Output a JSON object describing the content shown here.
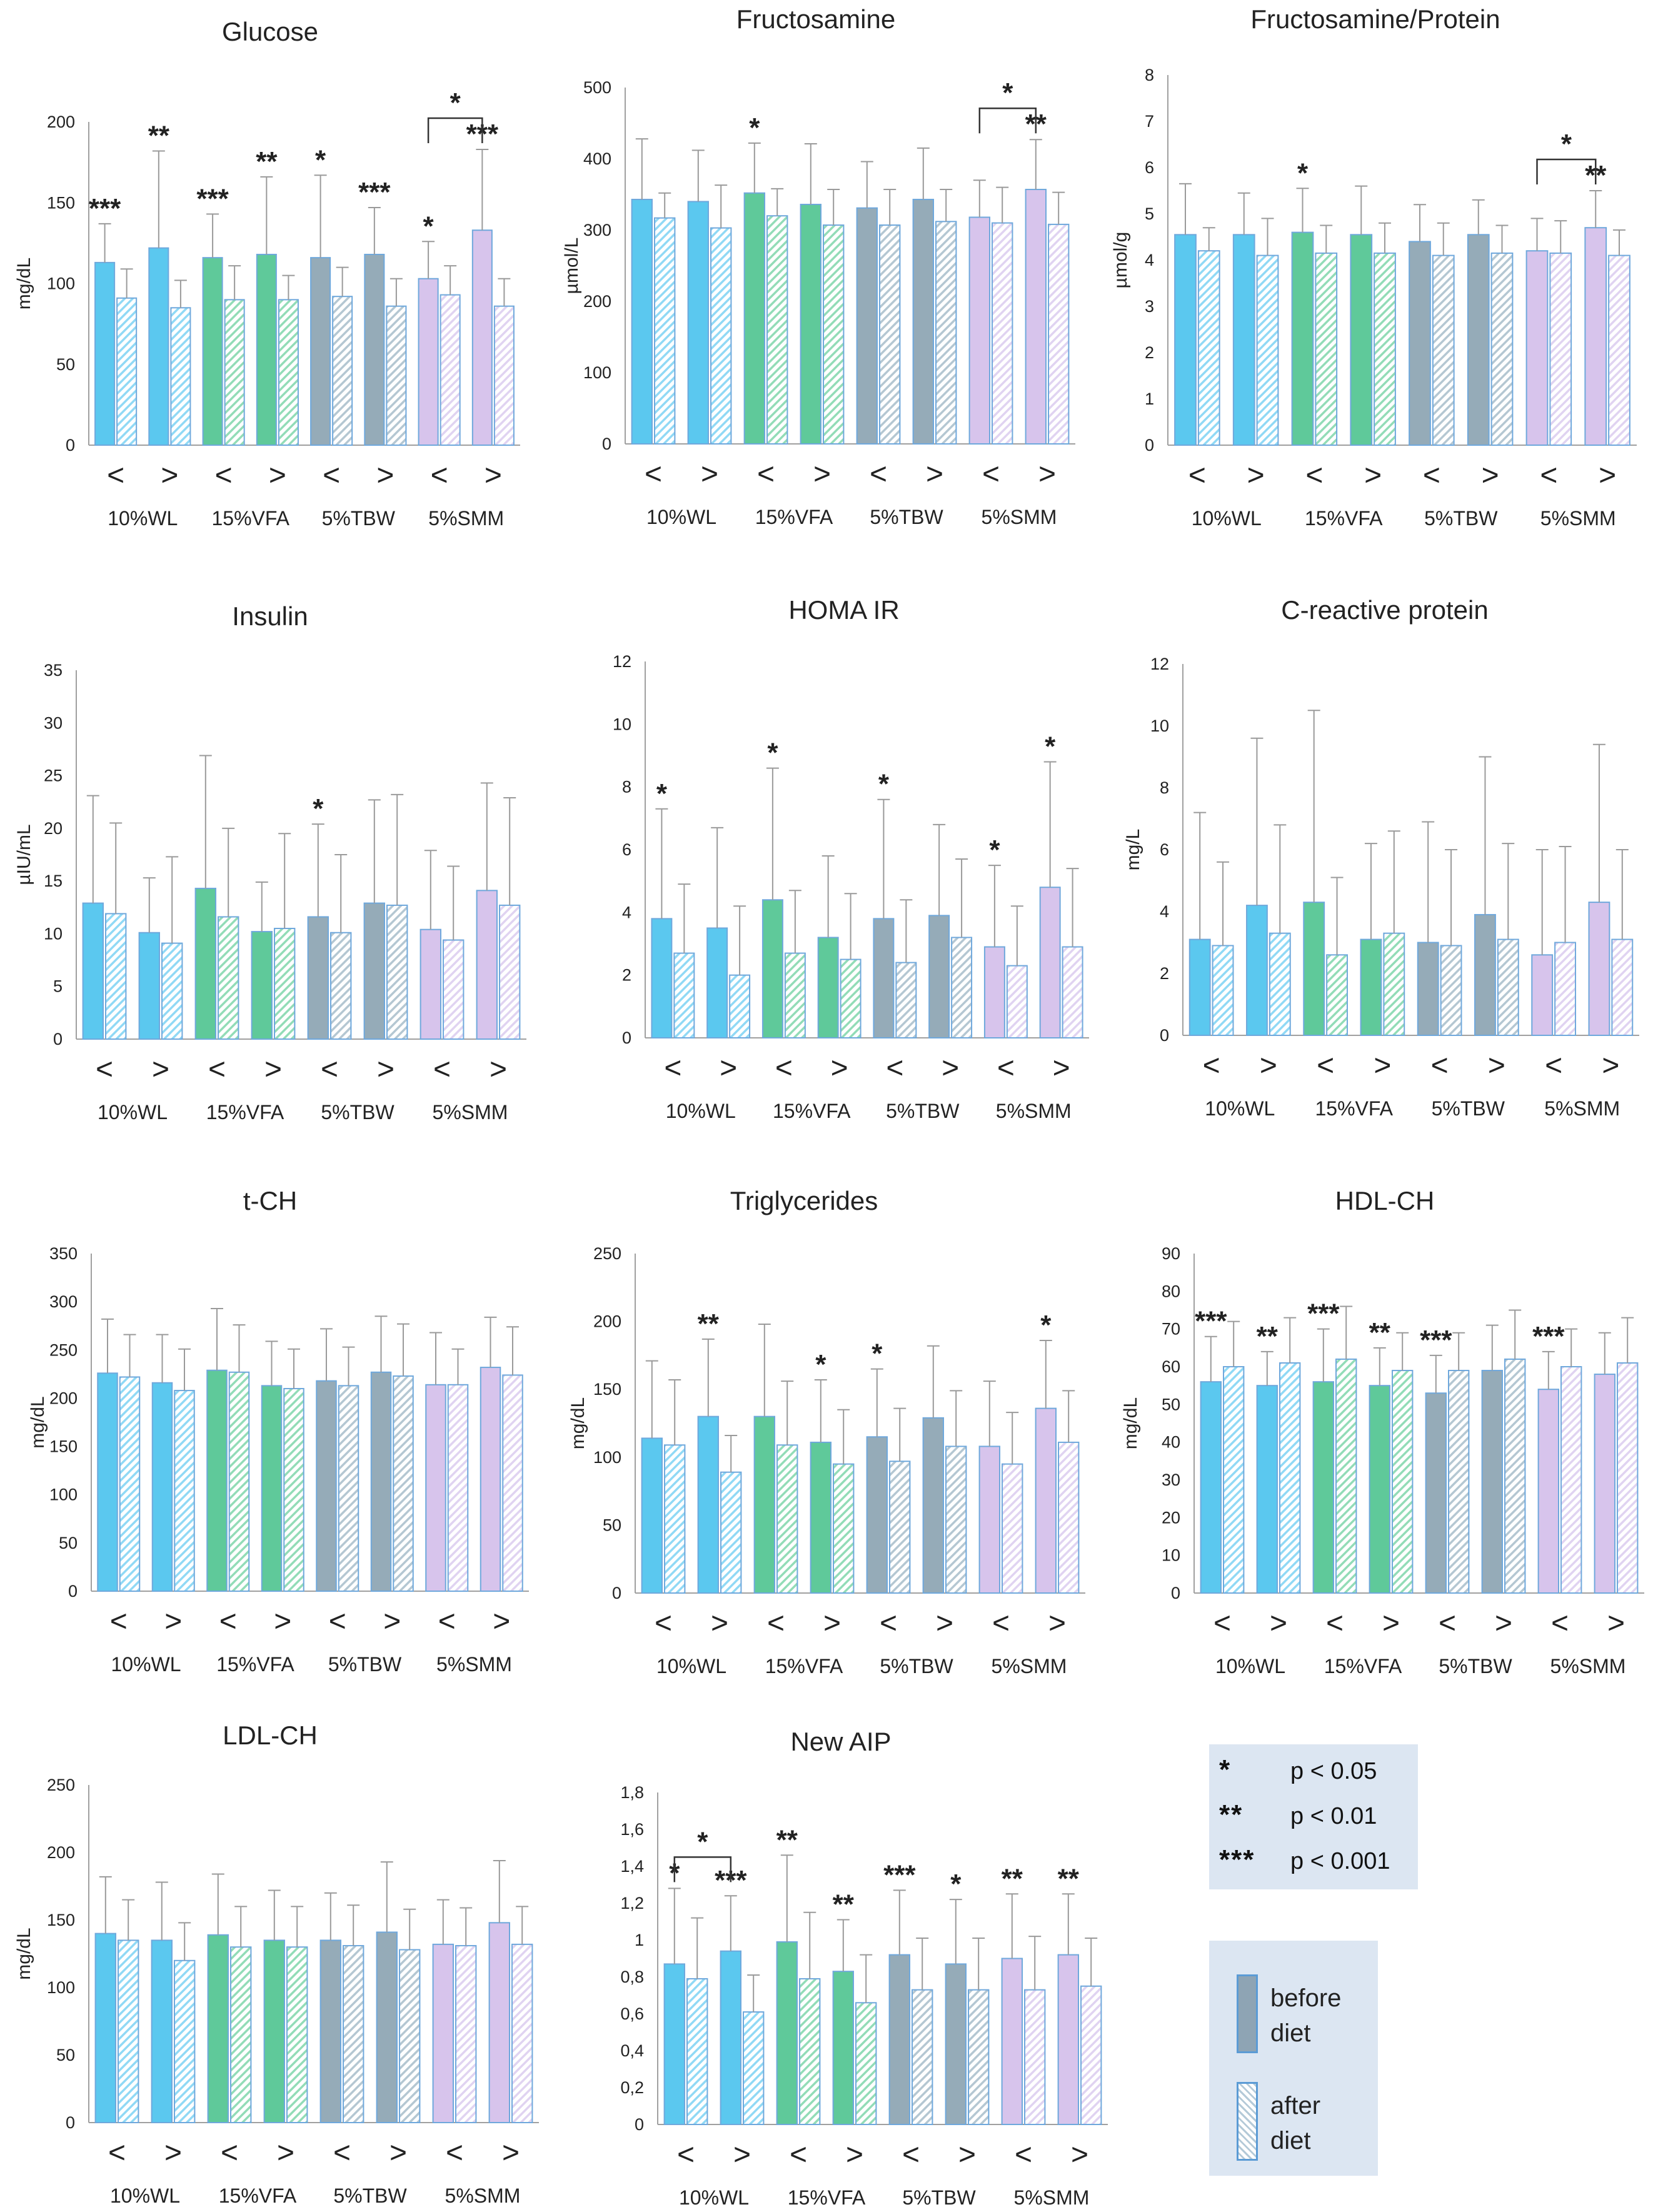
{
  "chart_data": [
    {
      "type": "bar",
      "title": "Glucose",
      "ylabel": "mg/dL",
      "ylim": [
        0,
        200
      ],
      "yticks": [
        "0",
        "50",
        "100",
        "150",
        "200"
      ],
      "groups": [
        "10%WL",
        "15%VFA",
        "5%TBW",
        "5%SMM"
      ],
      "subcategories": [
        "<",
        ">"
      ],
      "before": [
        113,
        122,
        116,
        118,
        116,
        118,
        103,
        133
      ],
      "before_err": [
        24,
        60,
        27,
        48,
        51,
        29,
        23,
        50
      ],
      "after": [
        91,
        85,
        90,
        90,
        92,
        86,
        93,
        86
      ],
      "after_err": [
        18,
        17,
        21,
        15,
        18,
        17,
        18,
        17
      ],
      "sig": [
        {
          "bar": 0,
          "label": "***"
        },
        {
          "bar": 1,
          "label": "**"
        },
        {
          "bar": 2,
          "label": "***"
        },
        {
          "bar": 3,
          "label": "**"
        },
        {
          "bar": 4,
          "label": "*"
        },
        {
          "bar": 5,
          "label": "***"
        },
        {
          "bar": 6,
          "label": "*"
        },
        {
          "bar": 7,
          "label": "***"
        }
      ],
      "brackets": [
        {
          "from": 6,
          "to": 7,
          "label": "*"
        }
      ]
    },
    {
      "type": "bar",
      "title": "Fructosamine",
      "ylabel": "µmol/L",
      "ylim": [
        0,
        500
      ],
      "yticks": [
        "0",
        "100",
        "200",
        "300",
        "400",
        "500"
      ],
      "groups": [
        "10%WL",
        "15%VFA",
        "5%TBW",
        "5%SMM"
      ],
      "subcategories": [
        "<",
        ">"
      ],
      "before": [
        343,
        340,
        352,
        336,
        331,
        343,
        318,
        357
      ],
      "before_err": [
        85,
        72,
        70,
        85,
        65,
        72,
        52,
        70
      ],
      "after": [
        317,
        303,
        320,
        307,
        307,
        312,
        310,
        308
      ],
      "after_err": [
        35,
        60,
        38,
        50,
        50,
        45,
        50,
        45
      ],
      "sig": [
        {
          "bar": 2,
          "label": "*"
        },
        {
          "bar": 7,
          "label": "**"
        }
      ],
      "brackets": [
        {
          "from": 6,
          "to": 7,
          "label": "*"
        }
      ]
    },
    {
      "type": "bar",
      "title": "Fructosamine/Protein",
      "ylabel": "µmol/g",
      "ylim": [
        0,
        8
      ],
      "yticks": [
        "0",
        "1",
        "2",
        "3",
        "4",
        "5",
        "6",
        "7",
        "8"
      ],
      "groups": [
        "10%WL",
        "15%VFA",
        "5%TBW",
        "5%SMM"
      ],
      "subcategories": [
        "<",
        ">"
      ],
      "before": [
        4.55,
        4.55,
        4.6,
        4.55,
        4.4,
        4.55,
        4.2,
        4.7
      ],
      "before_err": [
        1.1,
        0.9,
        0.95,
        1.05,
        0.8,
        0.75,
        0.7,
        0.8
      ],
      "after": [
        4.2,
        4.1,
        4.15,
        4.15,
        4.1,
        4.15,
        4.15,
        4.1
      ],
      "after_err": [
        0.5,
        0.8,
        0.6,
        0.65,
        0.7,
        0.6,
        0.7,
        0.55
      ],
      "sig": [
        {
          "bar": 2,
          "label": "*"
        },
        {
          "bar": 7,
          "label": "**"
        }
      ],
      "brackets": [
        {
          "from": 6,
          "to": 7,
          "label": "*"
        }
      ]
    },
    {
      "type": "bar",
      "title": "Insulin",
      "ylabel": "µIU/mL",
      "ylim": [
        0,
        35
      ],
      "yticks": [
        "0",
        "5",
        "10",
        "15",
        "20",
        "25",
        "30",
        "35"
      ],
      "groups": [
        "10%WL",
        "15%VFA",
        "5%TBW",
        "5%SMM"
      ],
      "subcategories": [
        "<",
        ">"
      ],
      "before": [
        12.9,
        10.1,
        14.3,
        10.2,
        11.6,
        12.9,
        10.4,
        14.1
      ],
      "before_err": [
        10.2,
        5.2,
        12.6,
        4.7,
        8.8,
        9.8,
        7.5,
        10.2
      ],
      "after": [
        11.9,
        9.1,
        11.6,
        10.5,
        10.1,
        12.7,
        9.4,
        12.7
      ],
      "after_err": [
        8.6,
        8.2,
        8.4,
        9,
        7.4,
        10.5,
        7,
        10.2
      ],
      "sig": [
        {
          "bar": 4,
          "label": "*"
        }
      ],
      "brackets": []
    },
    {
      "type": "bar",
      "title": "HOMA IR",
      "ylabel": "",
      "ylim": [
        0,
        12
      ],
      "yticks": [
        "0",
        "2",
        "4",
        "6",
        "8",
        "10",
        "12"
      ],
      "groups": [
        "10%WL",
        "15%VFA",
        "5%TBW",
        "5%SMM"
      ],
      "subcategories": [
        "<",
        ">"
      ],
      "before": [
        3.8,
        3.5,
        4.4,
        3.2,
        3.8,
        3.9,
        2.9,
        4.8
      ],
      "before_err": [
        3.5,
        3.2,
        4.2,
        2.6,
        3.8,
        2.9,
        2.6,
        4
      ],
      "after": [
        2.7,
        2.0,
        2.7,
        2.5,
        2.4,
        3.2,
        2.3,
        2.9
      ],
      "after_err": [
        2.2,
        2.2,
        2.0,
        2.1,
        2.0,
        2.5,
        1.9,
        2.5
      ],
      "sig": [
        {
          "bar": 0,
          "label": "*"
        },
        {
          "bar": 2,
          "label": "*"
        },
        {
          "bar": 4,
          "label": "*"
        },
        {
          "bar": 6,
          "label": "*"
        },
        {
          "bar": 7,
          "label": "*"
        }
      ],
      "brackets": []
    },
    {
      "type": "bar",
      "title": "C-reactive protein",
      "ylabel": "mg/L",
      "ylim": [
        0,
        12
      ],
      "yticks": [
        "0",
        "2",
        "4",
        "6",
        "8",
        "10",
        "12"
      ],
      "groups": [
        "10%WL",
        "15%VFA",
        "5%TBW",
        "5%SMM"
      ],
      "subcategories": [
        "<",
        ">"
      ],
      "before": [
        3.1,
        4.2,
        4.3,
        3.1,
        3.0,
        3.9,
        2.6,
        4.3
      ],
      "before_err": [
        4.1,
        5.4,
        6.2,
        3.1,
        3.9,
        5.1,
        3.4,
        5.1
      ],
      "after": [
        2.9,
        3.3,
        2.6,
        3.3,
        2.9,
        3.1,
        3.0,
        3.1
      ],
      "after_err": [
        2.7,
        3.5,
        2.5,
        3.3,
        3.1,
        3.1,
        3.1,
        2.9
      ],
      "sig": [],
      "brackets": []
    },
    {
      "type": "bar",
      "title": "t-CH",
      "ylabel": "mg/dL",
      "ylim": [
        0,
        350
      ],
      "yticks": [
        "0",
        "50",
        "100",
        "150",
        "200",
        "250",
        "300",
        "350"
      ],
      "groups": [
        "10%WL",
        "15%VFA",
        "5%TBW",
        "5%SMM"
      ],
      "subcategories": [
        "<",
        ">"
      ],
      "before": [
        226,
        216,
        229,
        213,
        218,
        227,
        214,
        232
      ],
      "before_err": [
        56,
        50,
        64,
        46,
        54,
        58,
        54,
        52
      ],
      "after": [
        222,
        208,
        227,
        210,
        213,
        223,
        214,
        224
      ],
      "after_err": [
        44,
        43,
        49,
        41,
        40,
        54,
        37,
        50
      ],
      "sig": [],
      "brackets": []
    },
    {
      "type": "bar",
      "title": "Triglycerides",
      "ylabel": "mg/dL",
      "ylim": [
        0,
        250
      ],
      "yticks": [
        "0",
        "50",
        "100",
        "150",
        "200",
        "250"
      ],
      "groups": [
        "10%WL",
        "15%VFA",
        "5%TBW",
        "5%SMM"
      ],
      "subcategories": [
        "<",
        ">"
      ],
      "before": [
        114,
        130,
        130,
        111,
        115,
        129,
        108,
        136
      ],
      "before_err": [
        57,
        57,
        68,
        46,
        50,
        53,
        48,
        50
      ],
      "after": [
        109,
        89,
        109,
        95,
        97,
        108,
        95,
        111
      ],
      "after_err": [
        48,
        27,
        47,
        40,
        39,
        41,
        38,
        38
      ],
      "sig": [
        {
          "bar": 1,
          "label": "**"
        },
        {
          "bar": 3,
          "label": "*"
        },
        {
          "bar": 4,
          "label": "*"
        },
        {
          "bar": 7,
          "label": "*"
        }
      ],
      "brackets": []
    },
    {
      "type": "bar",
      "title": "HDL-CH",
      "ylabel": "mg/dL",
      "ylim": [
        0,
        90
      ],
      "yticks": [
        "0",
        "10",
        "20",
        "30",
        "40",
        "50",
        "60",
        "70",
        "80",
        "90"
      ],
      "groups": [
        "10%WL",
        "15%VFA",
        "5%TBW",
        "5%SMM"
      ],
      "subcategories": [
        "<",
        ">"
      ],
      "before": [
        56,
        55,
        56,
        55,
        53,
        59,
        54,
        58
      ],
      "before_err": [
        12,
        9,
        14,
        10,
        10,
        12,
        10,
        11
      ],
      "after": [
        60,
        61,
        62,
        59,
        59,
        62,
        60,
        61
      ],
      "after_err": [
        12,
        12,
        14,
        10,
        10,
        13,
        10,
        12
      ],
      "sig": [
        {
          "bar": 0,
          "label": "***"
        },
        {
          "bar": 1,
          "label": "**"
        },
        {
          "bar": 2,
          "label": "***"
        },
        {
          "bar": 3,
          "label": "**"
        },
        {
          "bar": 4,
          "label": "***"
        },
        {
          "bar": 6,
          "label": "***"
        }
      ],
      "brackets": []
    },
    {
      "type": "bar",
      "title": "LDL-CH",
      "ylabel": "mg/dL",
      "ylim": [
        0,
        250
      ],
      "yticks": [
        "0",
        "50",
        "100",
        "150",
        "200",
        "250"
      ],
      "groups": [
        "10%WL",
        "15%VFA",
        "5%TBW",
        "5%SMM"
      ],
      "subcategories": [
        "<",
        ">"
      ],
      "before": [
        140,
        135,
        139,
        135,
        135,
        141,
        132,
        148
      ],
      "before_err": [
        42,
        43,
        45,
        37,
        35,
        52,
        33,
        46
      ],
      "after": [
        135,
        120,
        130,
        130,
        131,
        128,
        131,
        132
      ],
      "after_err": [
        30,
        28,
        30,
        30,
        30,
        30,
        28,
        28
      ],
      "sig": [],
      "brackets": []
    },
    {
      "type": "bar",
      "title": "New AIP",
      "ylabel": "",
      "ylim": [
        0,
        1.8
      ],
      "yticks": [
        "0",
        "0,2",
        "0,4",
        "0,6",
        "0,8",
        "1",
        "1,2",
        "1,4",
        "1,6",
        "1,8"
      ],
      "groups": [
        "10%WL",
        "15%VFA",
        "5%TBW",
        "5%SMM"
      ],
      "subcategories": [
        "<",
        ">"
      ],
      "before": [
        0.87,
        0.94,
        0.99,
        0.83,
        0.92,
        0.87,
        0.9,
        0.92
      ],
      "before_err": [
        0.41,
        0.3,
        0.47,
        0.28,
        0.35,
        0.35,
        0.35,
        0.33
      ],
      "after": [
        0.79,
        0.61,
        0.79,
        0.66,
        0.73,
        0.73,
        0.73,
        0.75
      ],
      "after_err": [
        0.33,
        0.2,
        0.36,
        0.26,
        0.28,
        0.28,
        0.29,
        0.26
      ],
      "sig": [
        {
          "bar": 0,
          "label": "*"
        },
        {
          "bar": 1,
          "label": "***"
        },
        {
          "bar": 2,
          "label": "**"
        },
        {
          "bar": 3,
          "label": "**"
        },
        {
          "bar": 4,
          "label": "***"
        },
        {
          "bar": 5,
          "label": "*"
        },
        {
          "bar": 6,
          "label": "**"
        },
        {
          "bar": 7,
          "label": "**"
        }
      ],
      "brackets": [
        {
          "from": 0,
          "to": 1,
          "label": "*"
        }
      ]
    }
  ],
  "significance_legend": [
    {
      "stars": "*",
      "text": "p < 0.05"
    },
    {
      "stars": "**",
      "text": "p < 0.01"
    },
    {
      "stars": "***",
      "text": "p < 0.001"
    }
  ],
  "diet_legend": [
    {
      "label": "before diet"
    },
    {
      "label": "after diet"
    }
  ],
  "colors": {
    "group_fill": [
      "#5bc8ef",
      "#5fc99a",
      "#95abb8",
      "#d7c4ec"
    ],
    "group_hatch": [
      "#90d9f5",
      "#92dcb7",
      "#b4c7d2",
      "#e0d3f1"
    ],
    "bar_border": "#6fa8dc",
    "error_bar": "#9a9a9a",
    "axis": "#a0a0a0",
    "text": "#222222"
  }
}
